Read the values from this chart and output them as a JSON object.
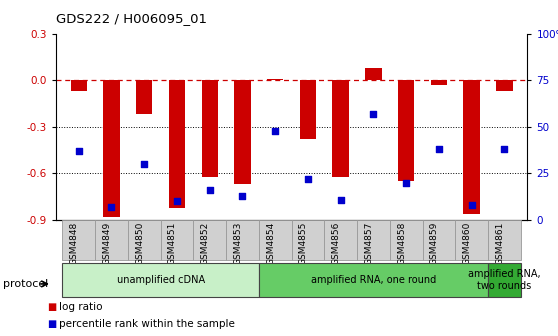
{
  "title": "GDS222 / H006095_01",
  "samples": [
    "GSM4848",
    "GSM4849",
    "GSM4850",
    "GSM4851",
    "GSM4852",
    "GSM4853",
    "GSM4854",
    "GSM4855",
    "GSM4856",
    "GSM4857",
    "GSM4858",
    "GSM4859",
    "GSM4860",
    "GSM4861"
  ],
  "log_ratio": [
    -0.07,
    -0.88,
    -0.22,
    -0.82,
    -0.62,
    -0.67,
    0.01,
    -0.38,
    -0.62,
    0.08,
    -0.65,
    -0.03,
    -0.86,
    -0.07
  ],
  "percentile_rank": [
    37,
    7,
    30,
    10,
    16,
    13,
    48,
    22,
    11,
    57,
    20,
    38,
    8,
    38
  ],
  "bar_color": "#cc0000",
  "dot_color": "#0000cc",
  "left_ylim": [
    -0.9,
    0.3
  ],
  "left_yticks": [
    -0.9,
    -0.6,
    -0.3,
    0.0,
    0.3
  ],
  "right_ylim": [
    0,
    100
  ],
  "right_yticks": [
    0,
    25,
    50,
    75,
    100
  ],
  "right_yticklabels": [
    "0",
    "25",
    "50",
    "75",
    "100%"
  ],
  "hline_y": 0.0,
  "dotted_lines": [
    -0.3,
    -0.6
  ],
  "protocol_groups": [
    {
      "label": "unamplified cDNA",
      "start": 0,
      "end": 5,
      "color": "#c8f0c8"
    },
    {
      "label": "amplified RNA, one round",
      "start": 6,
      "end": 12,
      "color": "#66cc66"
    },
    {
      "label": "amplified RNA,\ntwo rounds",
      "start": 13,
      "end": 13,
      "color": "#33aa33"
    }
  ],
  "protocol_label": "protocol",
  "legend_items": [
    {
      "label": "log ratio",
      "color": "#cc0000",
      "marker": "s"
    },
    {
      "label": "percentile rank within the sample",
      "color": "#0000cc",
      "marker": "s"
    }
  ],
  "background_color": "#ffffff",
  "bar_width": 0.5,
  "xtick_bg_color": "#d0d0d0",
  "xtick_border_color": "#999999"
}
